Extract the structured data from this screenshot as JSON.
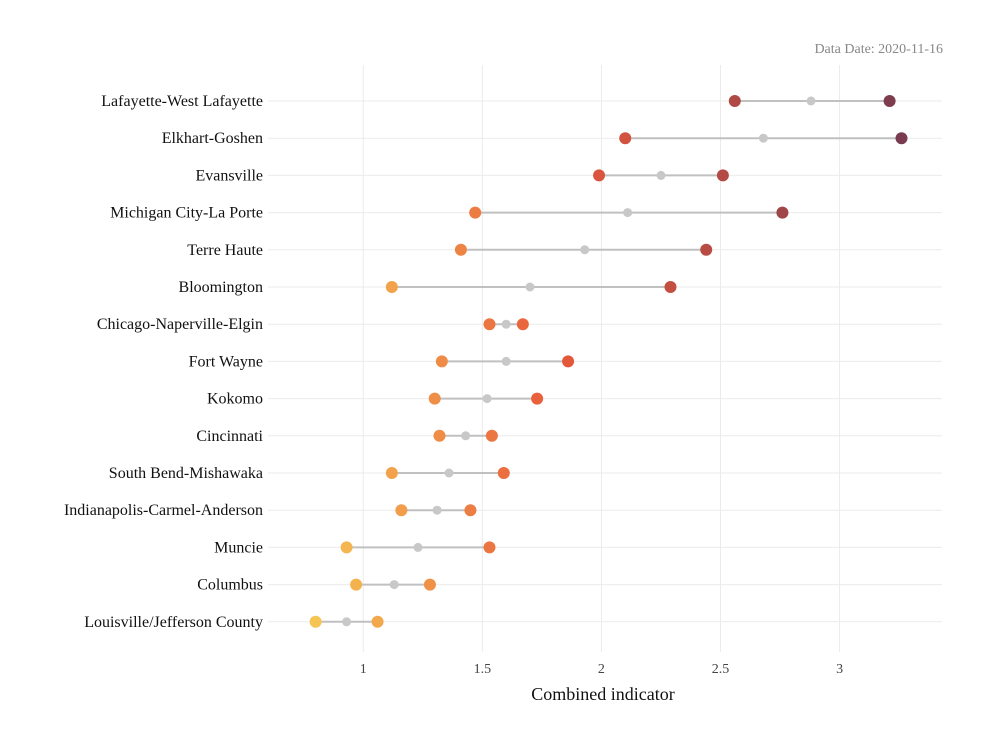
{
  "chart_data": {
    "type": "dumbbell",
    "caption": "Data Date: 2020-11-16",
    "xlabel": "Combined indicator",
    "ylabel": "",
    "xlim": [
      0.6,
      3.43
    ],
    "xticks": [
      1,
      1.5,
      2,
      2.5,
      3
    ],
    "xtick_labels": [
      "1",
      "1.5",
      "2",
      "2.5",
      "3"
    ],
    "grid": true,
    "legend": "none",
    "connector_color": "#c0c0c0",
    "mid_color": "#c8c8c8",
    "color_scale": {
      "low": "#f6c453",
      "mid": "#e8593a",
      "high": "#7a3b50",
      "domain": [
        0.8,
        1.8,
        3.26
      ]
    },
    "categories": [
      "Lafayette-West Lafayette",
      "Elkhart-Goshen",
      "Evansville",
      "Michigan City-La Porte",
      "Terre Haute",
      "Bloomington",
      "Chicago-Naperville-Elgin",
      "Fort Wayne",
      "Kokomo",
      "Cincinnati",
      "South Bend-Mishawaka",
      "Indianapolis-Carmel-Anderson",
      "Muncie",
      "Columbus",
      "Louisville/Jefferson County"
    ],
    "series": [
      {
        "values": [
          2.56,
          2.1,
          1.99,
          1.47,
          1.41,
          1.12,
          1.53,
          1.33,
          1.3,
          1.32,
          1.12,
          1.16,
          0.93,
          0.97,
          0.8
        ]
      },
      {
        "values": [
          2.88,
          2.68,
          2.25,
          2.11,
          1.93,
          1.7,
          1.6,
          1.6,
          1.52,
          1.43,
          1.36,
          1.31,
          1.23,
          1.13,
          0.93
        ]
      },
      {
        "values": [
          3.21,
          3.26,
          2.51,
          2.76,
          2.44,
          2.29,
          1.67,
          1.86,
          1.73,
          1.54,
          1.59,
          1.45,
          1.53,
          1.28,
          1.06
        ]
      }
    ]
  }
}
